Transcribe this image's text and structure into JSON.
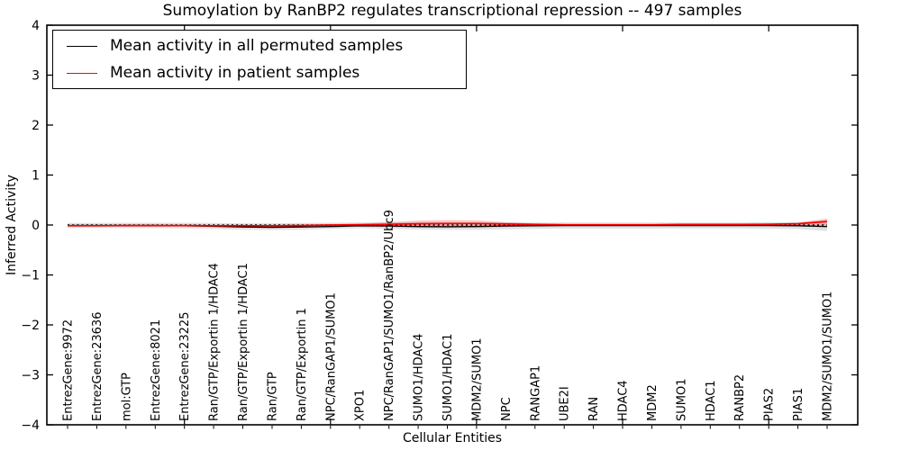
{
  "title": "Sumoylation by RanBP2 regulates transcriptional repression -- 497 samples",
  "axes": {
    "xlabel": "Cellular Entities",
    "ylabel": "Inferred Activity"
  },
  "legend": {
    "position": "upper-left",
    "entries": [
      {
        "label": "Mean activity in all permuted samples",
        "color": "#000000"
      },
      {
        "label": "Mean activity in patient samples",
        "color": "#ff0000"
      }
    ]
  },
  "chart_data": {
    "type": "line",
    "title": "Sumoylation by RanBP2 regulates transcriptional repression -- 497 samples",
    "xlabel": "Cellular Entities",
    "ylabel": "Inferred Activity",
    "ylim": [
      -4,
      4
    ],
    "yticks": [
      4,
      3,
      2,
      1,
      0,
      -1,
      -2,
      -3,
      -4
    ],
    "xtick_category_indices": [
      4,
      9,
      14,
      19,
      24
    ],
    "grid": false,
    "categories": [
      "EntrezGene:9972",
      "EntrezGene:23636",
      "mol:GTP",
      "EntrezGene:8021",
      "EntrezGene:23225",
      "Ran/GTP/Exportin 1/HDAC4",
      "Ran/GTP/Exportin 1/HDAC1",
      "Ran/GTP",
      "Ran/GTP/Exportin 1",
      "NPC/RanGAP1/SUMO1",
      "XPO1",
      "NPC/RanGAP1/SUMO1/RanBP2/Ubc9",
      "SUMO1/HDAC4",
      "SUMO1/HDAC1",
      "MDM2/SUMO1",
      "NPC",
      "RANGAP1",
      "UBE2I",
      "RAN",
      "HDAC4",
      "MDM2",
      "SUMO1",
      "HDAC1",
      "RANBP2",
      "PIAS2",
      "PIAS1",
      "MDM2/SUMO1/SUMO1"
    ],
    "series": [
      {
        "name": "Mean activity in all permuted samples",
        "color": "#000000",
        "values": [
          -0.01,
          -0.01,
          -0.01,
          -0.01,
          -0.015,
          -0.025,
          -0.04,
          -0.045,
          -0.04,
          -0.03,
          -0.015,
          -0.02,
          -0.03,
          -0.035,
          -0.03,
          -0.02,
          -0.015,
          -0.01,
          -0.01,
          -0.01,
          -0.01,
          -0.01,
          -0.01,
          -0.01,
          -0.01,
          -0.015,
          -0.03
        ]
      },
      {
        "name": "Mean activity in patient samples",
        "color": "#ff0000",
        "values": [
          -0.015,
          -0.015,
          -0.01,
          -0.01,
          -0.01,
          -0.015,
          -0.015,
          -0.015,
          -0.01,
          0,
          0.005,
          0.015,
          0.025,
          0.03,
          0.03,
          0.02,
          0.01,
          0.005,
          0.005,
          0.005,
          0.005,
          0.01,
          0.01,
          0.01,
          0.015,
          0.025,
          0.07
        ]
      }
    ],
    "zero_line": {
      "value": 0,
      "style": "dotted",
      "color": "#000000"
    },
    "bands": [
      {
        "name": "permuted-samples-std-band",
        "color": "#999999",
        "opacity": 0.3,
        "top": [
          0.04,
          0.04,
          0.045,
          0.045,
          0.045,
          0.04,
          0.035,
          0.035,
          0.04,
          0.045,
          0.05,
          0.05,
          0.055,
          0.055,
          0.055,
          0.05,
          0.05,
          0.05,
          0.05,
          0.05,
          0.05,
          0.05,
          0.05,
          0.05,
          0.055,
          0.06,
          0.1
        ],
        "bottom": [
          -0.06,
          -0.06,
          -0.06,
          -0.06,
          -0.065,
          -0.08,
          -0.095,
          -0.1,
          -0.095,
          -0.08,
          -0.065,
          -0.075,
          -0.09,
          -0.095,
          -0.095,
          -0.085,
          -0.075,
          -0.07,
          -0.07,
          -0.07,
          -0.07,
          -0.07,
          -0.07,
          -0.07,
          -0.075,
          -0.08,
          -0.12
        ]
      },
      {
        "name": "patient-samples-std-band",
        "color": "#ff0000",
        "opacity": 0.22,
        "top": [
          0.005,
          0.005,
          0.005,
          0.005,
          0.005,
          0.005,
          0.005,
          0.005,
          0.01,
          0.015,
          0.03,
          0.06,
          0.09,
          0.1,
          0.095,
          0.06,
          0.03,
          0.02,
          0.015,
          0.015,
          0.015,
          0.02,
          0.02,
          0.02,
          0.03,
          0.045,
          0.13
        ],
        "bottom": [
          -0.03,
          -0.03,
          -0.03,
          -0.03,
          -0.03,
          -0.035,
          -0.035,
          -0.035,
          -0.03,
          -0.03,
          -0.03,
          -0.04,
          -0.05,
          -0.055,
          -0.05,
          -0.04,
          -0.02,
          -0.015,
          -0.01,
          -0.01,
          -0.01,
          -0.015,
          -0.015,
          -0.015,
          -0.02,
          -0.02,
          0.0
        ]
      }
    ]
  }
}
